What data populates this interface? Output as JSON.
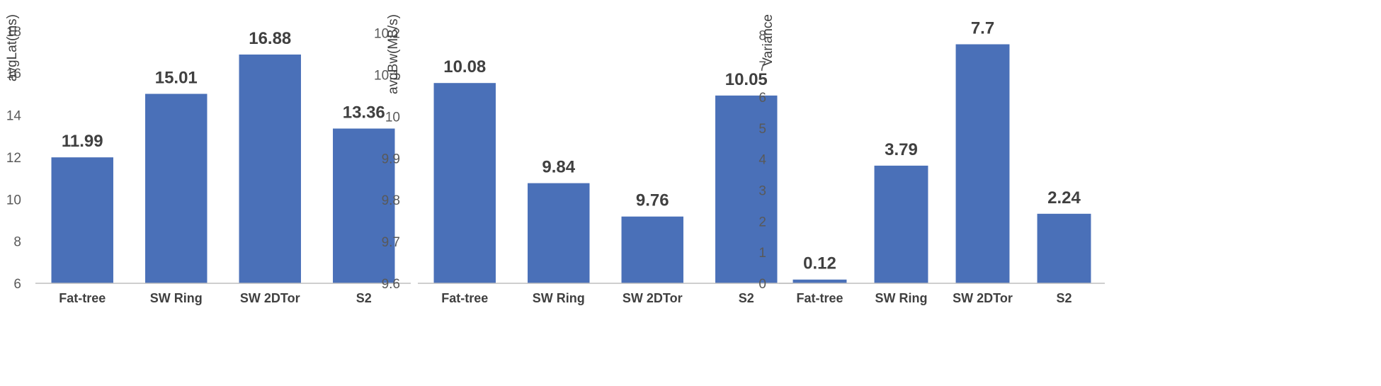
{
  "chart_data": [
    {
      "type": "bar",
      "ylabel": "avgLat(ms)",
      "categories": [
        "Fat-tree",
        "SW Ring",
        "SW 2DTor",
        "S2"
      ],
      "values": [
        11.99,
        15.01,
        16.88,
        13.36
      ],
      "value_labels": [
        "11.99",
        "15.01",
        "16.88",
        "13.36"
      ],
      "ylim": [
        6,
        18.8
      ],
      "yticks": [
        6,
        8,
        10,
        12,
        14,
        16,
        18
      ],
      "ytick_labels": [
        "6",
        "8",
        "10",
        "12",
        "14",
        "16",
        "18"
      ],
      "bar_color": "#4a70b8",
      "grid": false
    },
    {
      "type": "bar",
      "ylabel": "avgBw(MB/s)",
      "categories": [
        "Fat-tree",
        "SW Ring",
        "SW 2DTor",
        "S2"
      ],
      "values": [
        10.08,
        9.84,
        9.76,
        10.05
      ],
      "value_labels": [
        "10.08",
        "9.84",
        "9.76",
        "10.05"
      ],
      "ylim": [
        9.6,
        10.245
      ],
      "yticks": [
        9.6,
        9.7,
        9.8,
        9.9,
        10.0,
        10.1,
        10.2
      ],
      "ytick_labels": [
        "9.6",
        "9.7",
        "9.8",
        "9.9",
        "10",
        "10.1",
        "10.2"
      ],
      "bar_color": "#4a70b8",
      "grid": false
    },
    {
      "type": "bar",
      "ylabel": "Variance",
      "categories": [
        "Fat-tree",
        "SW Ring",
        "SW 2DTor",
        "S2"
      ],
      "values": [
        0.12,
        3.79,
        7.7,
        2.24
      ],
      "value_labels": [
        "0.12",
        "3.79",
        "7.7",
        "2.24"
      ],
      "ylim": [
        0,
        8.67
      ],
      "yticks": [
        0,
        1,
        2,
        3,
        4,
        5,
        6,
        7,
        8
      ],
      "ytick_labels": [
        "0",
        "1",
        "2",
        "3",
        "4",
        "5",
        "6",
        "7",
        "8"
      ],
      "bar_color": "#4a70b8",
      "grid": false
    }
  ]
}
